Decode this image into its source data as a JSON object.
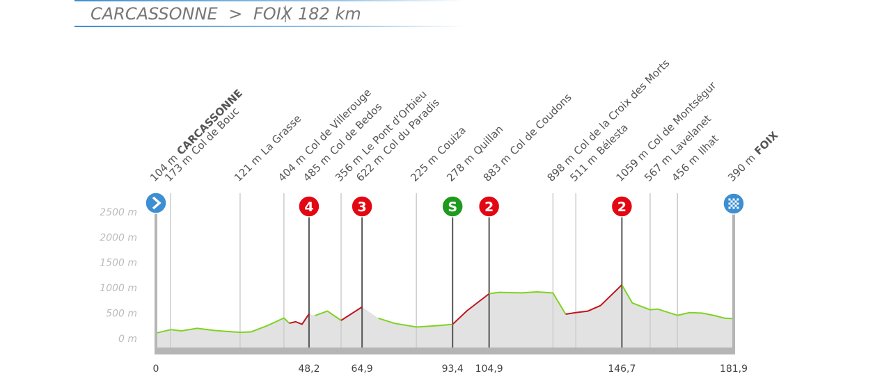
{
  "chart_data": {
    "type": "profile",
    "title": {
      "from": "CARCASSONNE",
      "arrow": ">",
      "to": "FOIX",
      "distance": "182 km"
    },
    "xlim": [
      0,
      181.9
    ],
    "ylim": [
      -180,
      2700
    ],
    "yticks": [
      {
        "value": 0,
        "label": "0 m"
      },
      {
        "value": 500,
        "label": "500 m"
      },
      {
        "value": 1000,
        "label": "1000 m"
      },
      {
        "value": 1500,
        "label": "1500 m"
      },
      {
        "value": 2000,
        "label": "2000 m"
      },
      {
        "value": 2500,
        "label": "2500 m"
      }
    ],
    "xticks": [
      0,
      {
        "value": 48.2,
        "label": "48,2"
      },
      {
        "value": 64.9,
        "label": "64,9"
      },
      {
        "value": 93.4,
        "label": "93,4"
      },
      {
        "value": 104.9,
        "label": "104,9"
      },
      {
        "value": 146.7,
        "label": "146,7"
      },
      {
        "value": 181.9,
        "label": "181,9"
      }
    ],
    "x": [
      0,
      4.6,
      8,
      13,
      18,
      22,
      26.5,
      30,
      35,
      40.3,
      42,
      44,
      46,
      48.2,
      50,
      54,
      58.3,
      64.9,
      70,
      75,
      82,
      86,
      90,
      93.4,
      98,
      104.9,
      108,
      115,
      120,
      125,
      129,
      132.2,
      136,
      140,
      146.7,
      150,
      155.6,
      158,
      161,
      164.2,
      168,
      172,
      176,
      179,
      181.9
    ],
    "series": [
      {
        "color": "#7ed321",
        "values": [
          104,
          173,
          150,
          200,
          160,
          140,
          121,
          130,
          250,
          404,
          300,
          null,
          null,
          null,
          450,
          540,
          356,
          null,
          400,
          300,
          225,
          240,
          260,
          278,
          null,
          883,
          910,
          900,
          920,
          898,
          480,
          null,
          null,
          null,
          1059,
          700,
          567,
          580,
          520,
          456,
          510,
          500,
          450,
          400,
          390
        ]
      },
      {
        "color": "#c0141c",
        "values": [
          null,
          null,
          null,
          null,
          null,
          null,
          null,
          null,
          null,
          null,
          300,
          330,
          280,
          485,
          null,
          null,
          356,
          622,
          null,
          null,
          null,
          null,
          null,
          278,
          550,
          883,
          null,
          null,
          null,
          null,
          480,
          511,
          540,
          650,
          1059,
          null,
          null,
          null,
          null,
          null,
          null,
          null,
          null,
          null,
          null
        ]
      }
    ],
    "waypoints": [
      {
        "km": 0,
        "altitude": "104 m",
        "name": "CARCASSONNE"
      },
      {
        "km": 4.6,
        "altitude": "173 m",
        "name": "Col de Bouc"
      },
      {
        "km": 26.5,
        "altitude": "121 m",
        "name": "La Grasse"
      },
      {
        "km": 40.3,
        "altitude": "404 m",
        "name": "Col de Villerouge"
      },
      {
        "km": 48.2,
        "altitude": "485 m",
        "name": "Col de Bedos",
        "badge": "4",
        "badge_color": "#e30613"
      },
      {
        "km": 58.3,
        "altitude": "356 m",
        "name": "Le Pont d'Orbieu"
      },
      {
        "km": 64.9,
        "altitude": "622 m",
        "name": "Col du Paradis",
        "badge": "3",
        "badge_color": "#e30613"
      },
      {
        "km": 82,
        "altitude": "225 m",
        "name": "Couiza"
      },
      {
        "km": 93.4,
        "altitude": "278 m",
        "name": "Quillan",
        "badge": "S",
        "badge_color": "#1e9a1e"
      },
      {
        "km": 104.9,
        "altitude": "883 m",
        "name": "Col de Coudons",
        "badge": "2",
        "badge_color": "#e30613"
      },
      {
        "km": 125,
        "altitude": "898 m",
        "name": "Col de la Croix des Morts"
      },
      {
        "km": 132.2,
        "altitude": "511 m",
        "name": "Bélesta"
      },
      {
        "km": 146.7,
        "altitude": "1059 m",
        "name": "Col de Montségur",
        "badge": "2",
        "badge_color": "#e30613"
      },
      {
        "km": 155.6,
        "altitude": "567 m",
        "name": "Lavelanet"
      },
      {
        "km": 164.2,
        "altitude": "456 m",
        "name": "Ilhat"
      },
      {
        "km": 181.9,
        "altitude": "390 m",
        "name": "FOIX"
      }
    ]
  }
}
